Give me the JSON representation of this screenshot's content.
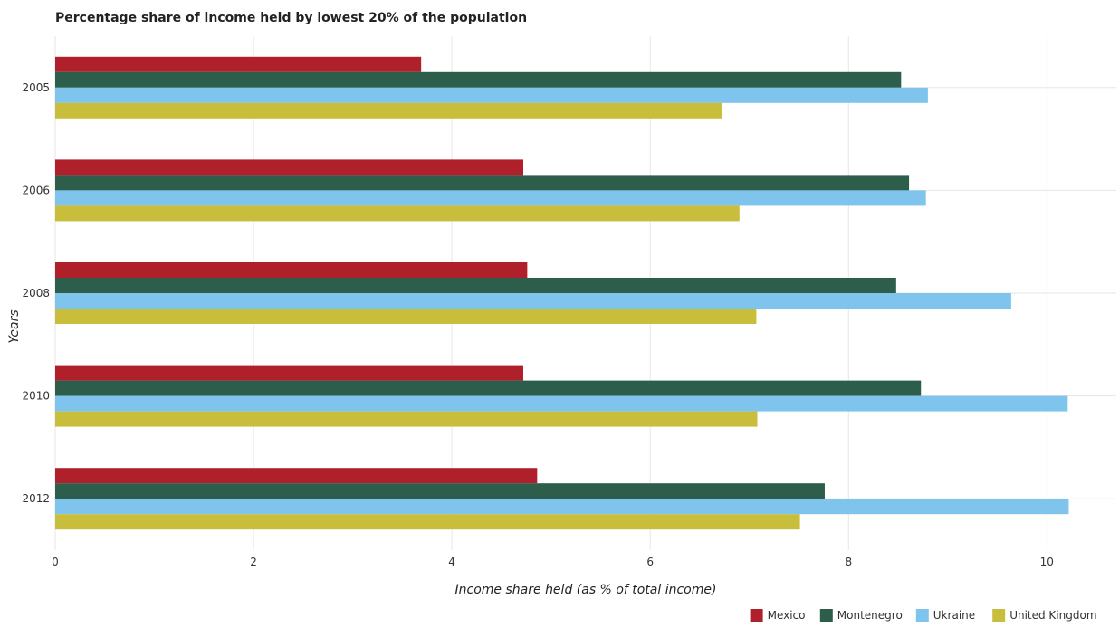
{
  "chart_data": {
    "type": "bar",
    "orientation": "horizontal",
    "title": "Percentage share of income held by lowest 20% of the population",
    "xlabel": "Income share held (as % of total income)",
    "ylabel": "Years",
    "categories": [
      "2005",
      "2006",
      "2008",
      "2010",
      "2012"
    ],
    "xlim": [
      0,
      10.7
    ],
    "xticks": [
      0,
      2,
      4,
      6,
      8,
      10
    ],
    "xtick_labels": [
      "0",
      "2",
      "4",
      "6",
      "8",
      "10"
    ],
    "grid": true,
    "legend_position": "bottom-right",
    "series": [
      {
        "name": "Mexico",
        "color": "#b0202b",
        "values": [
          3.69,
          4.72,
          4.76,
          4.72,
          4.86
        ]
      },
      {
        "name": "Montenegro",
        "color": "#2d5e4b",
        "values": [
          8.53,
          8.61,
          8.48,
          8.73,
          7.76
        ]
      },
      {
        "name": "Ukraine",
        "color": "#7ec4ec",
        "values": [
          8.8,
          8.78,
          9.64,
          10.21,
          10.22
        ]
      },
      {
        "name": "United Kingdom",
        "color": "#c8be3c",
        "values": [
          6.72,
          6.9,
          7.07,
          7.08,
          7.51
        ]
      }
    ]
  }
}
